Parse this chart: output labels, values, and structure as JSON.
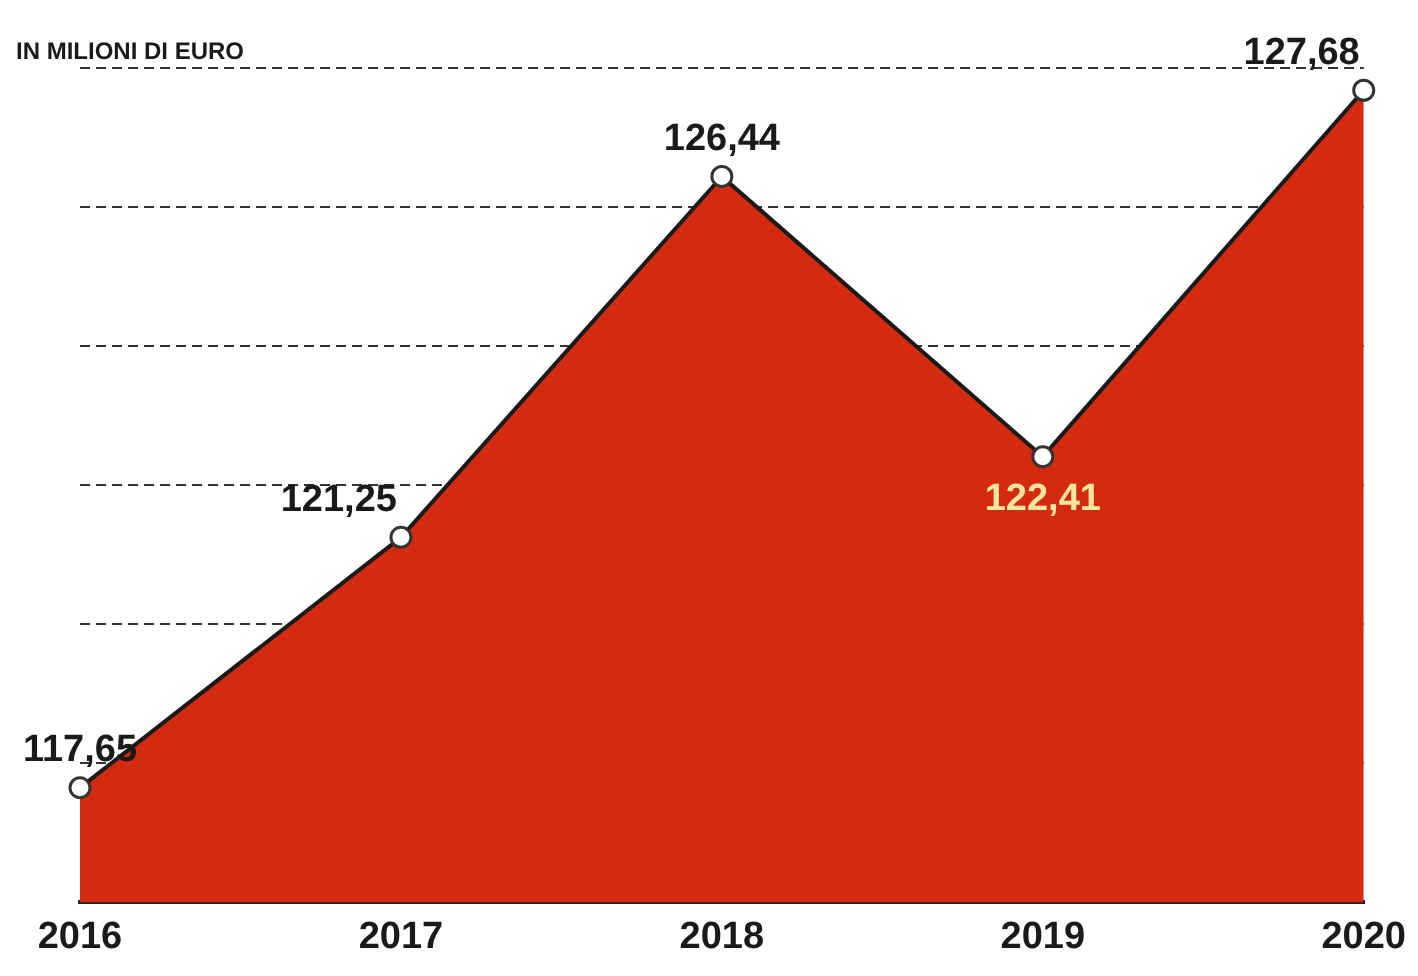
{
  "chart_data": {
    "type": "area",
    "ylabel": "IN MILIONI DI EURO",
    "categories": [
      "2016",
      "2017",
      "2018",
      "2019",
      "2020"
    ],
    "series": [
      {
        "color": "#d42a10",
        "values": [
          117.65,
          121.25,
          126.44,
          122.41,
          127.68
        ],
        "value_labels": [
          "117,65",
          "121,25",
          "126,44",
          "122,41",
          "127,68"
        ]
      }
    ],
    "ylim": [
      116,
      128
    ],
    "yticks": [
      {
        "value": 116,
        "label": null
      },
      {
        "value": 118,
        "label": null
      },
      {
        "value": 120,
        "label": null
      },
      {
        "value": 122,
        "label": null
      },
      {
        "value": 124,
        "label": null
      },
      {
        "value": 126,
        "label": null
      },
      {
        "value": 128,
        "label": null
      }
    ],
    "grid": "y",
    "tick_labels": "x",
    "marker": "circle",
    "line_style": "solid"
  }
}
